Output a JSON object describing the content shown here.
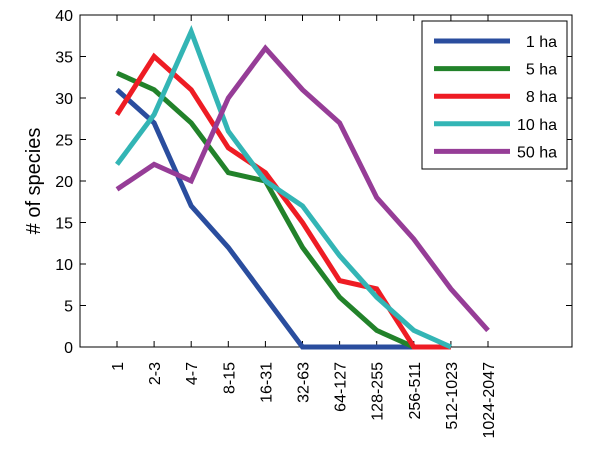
{
  "chart_data": {
    "type": "line",
    "title": "",
    "xlabel": "",
    "ylabel": "# of species",
    "ylim": [
      0,
      40
    ],
    "yticks": [
      "0",
      "5",
      "10",
      "15",
      "20",
      "25",
      "30",
      "35",
      "40"
    ],
    "categories": [
      "1",
      "2-3",
      "4-7",
      "8-15",
      "16-31",
      "32-63",
      "64-127",
      "128-255",
      "256-511",
      "512-1023",
      "1024-2047"
    ],
    "grid": false,
    "legend_position": "top-right",
    "series": [
      {
        "name": "1 ha",
        "color": "#2a4d9e",
        "values": [
          31,
          27,
          17,
          12,
          6,
          0,
          0,
          0,
          0,
          null,
          null
        ]
      },
      {
        "name": "5 ha",
        "color": "#22822a",
        "values": [
          33,
          31,
          27,
          21,
          20,
          12,
          6,
          2,
          0,
          null,
          null
        ]
      },
      {
        "name": "8 ha",
        "color": "#ee1c24",
        "values": [
          28,
          35,
          31,
          24,
          21,
          15,
          8,
          7,
          0,
          0,
          null
        ]
      },
      {
        "name": "10 ha",
        "color": "#33b5b5",
        "values": [
          22,
          28,
          38,
          26,
          20,
          17,
          11,
          6,
          2,
          0,
          null
        ]
      },
      {
        "name": "50 ha",
        "color": "#963d97",
        "values": [
          19,
          22,
          20,
          30,
          36,
          31,
          27,
          18,
          13,
          7,
          2
        ]
      }
    ]
  }
}
